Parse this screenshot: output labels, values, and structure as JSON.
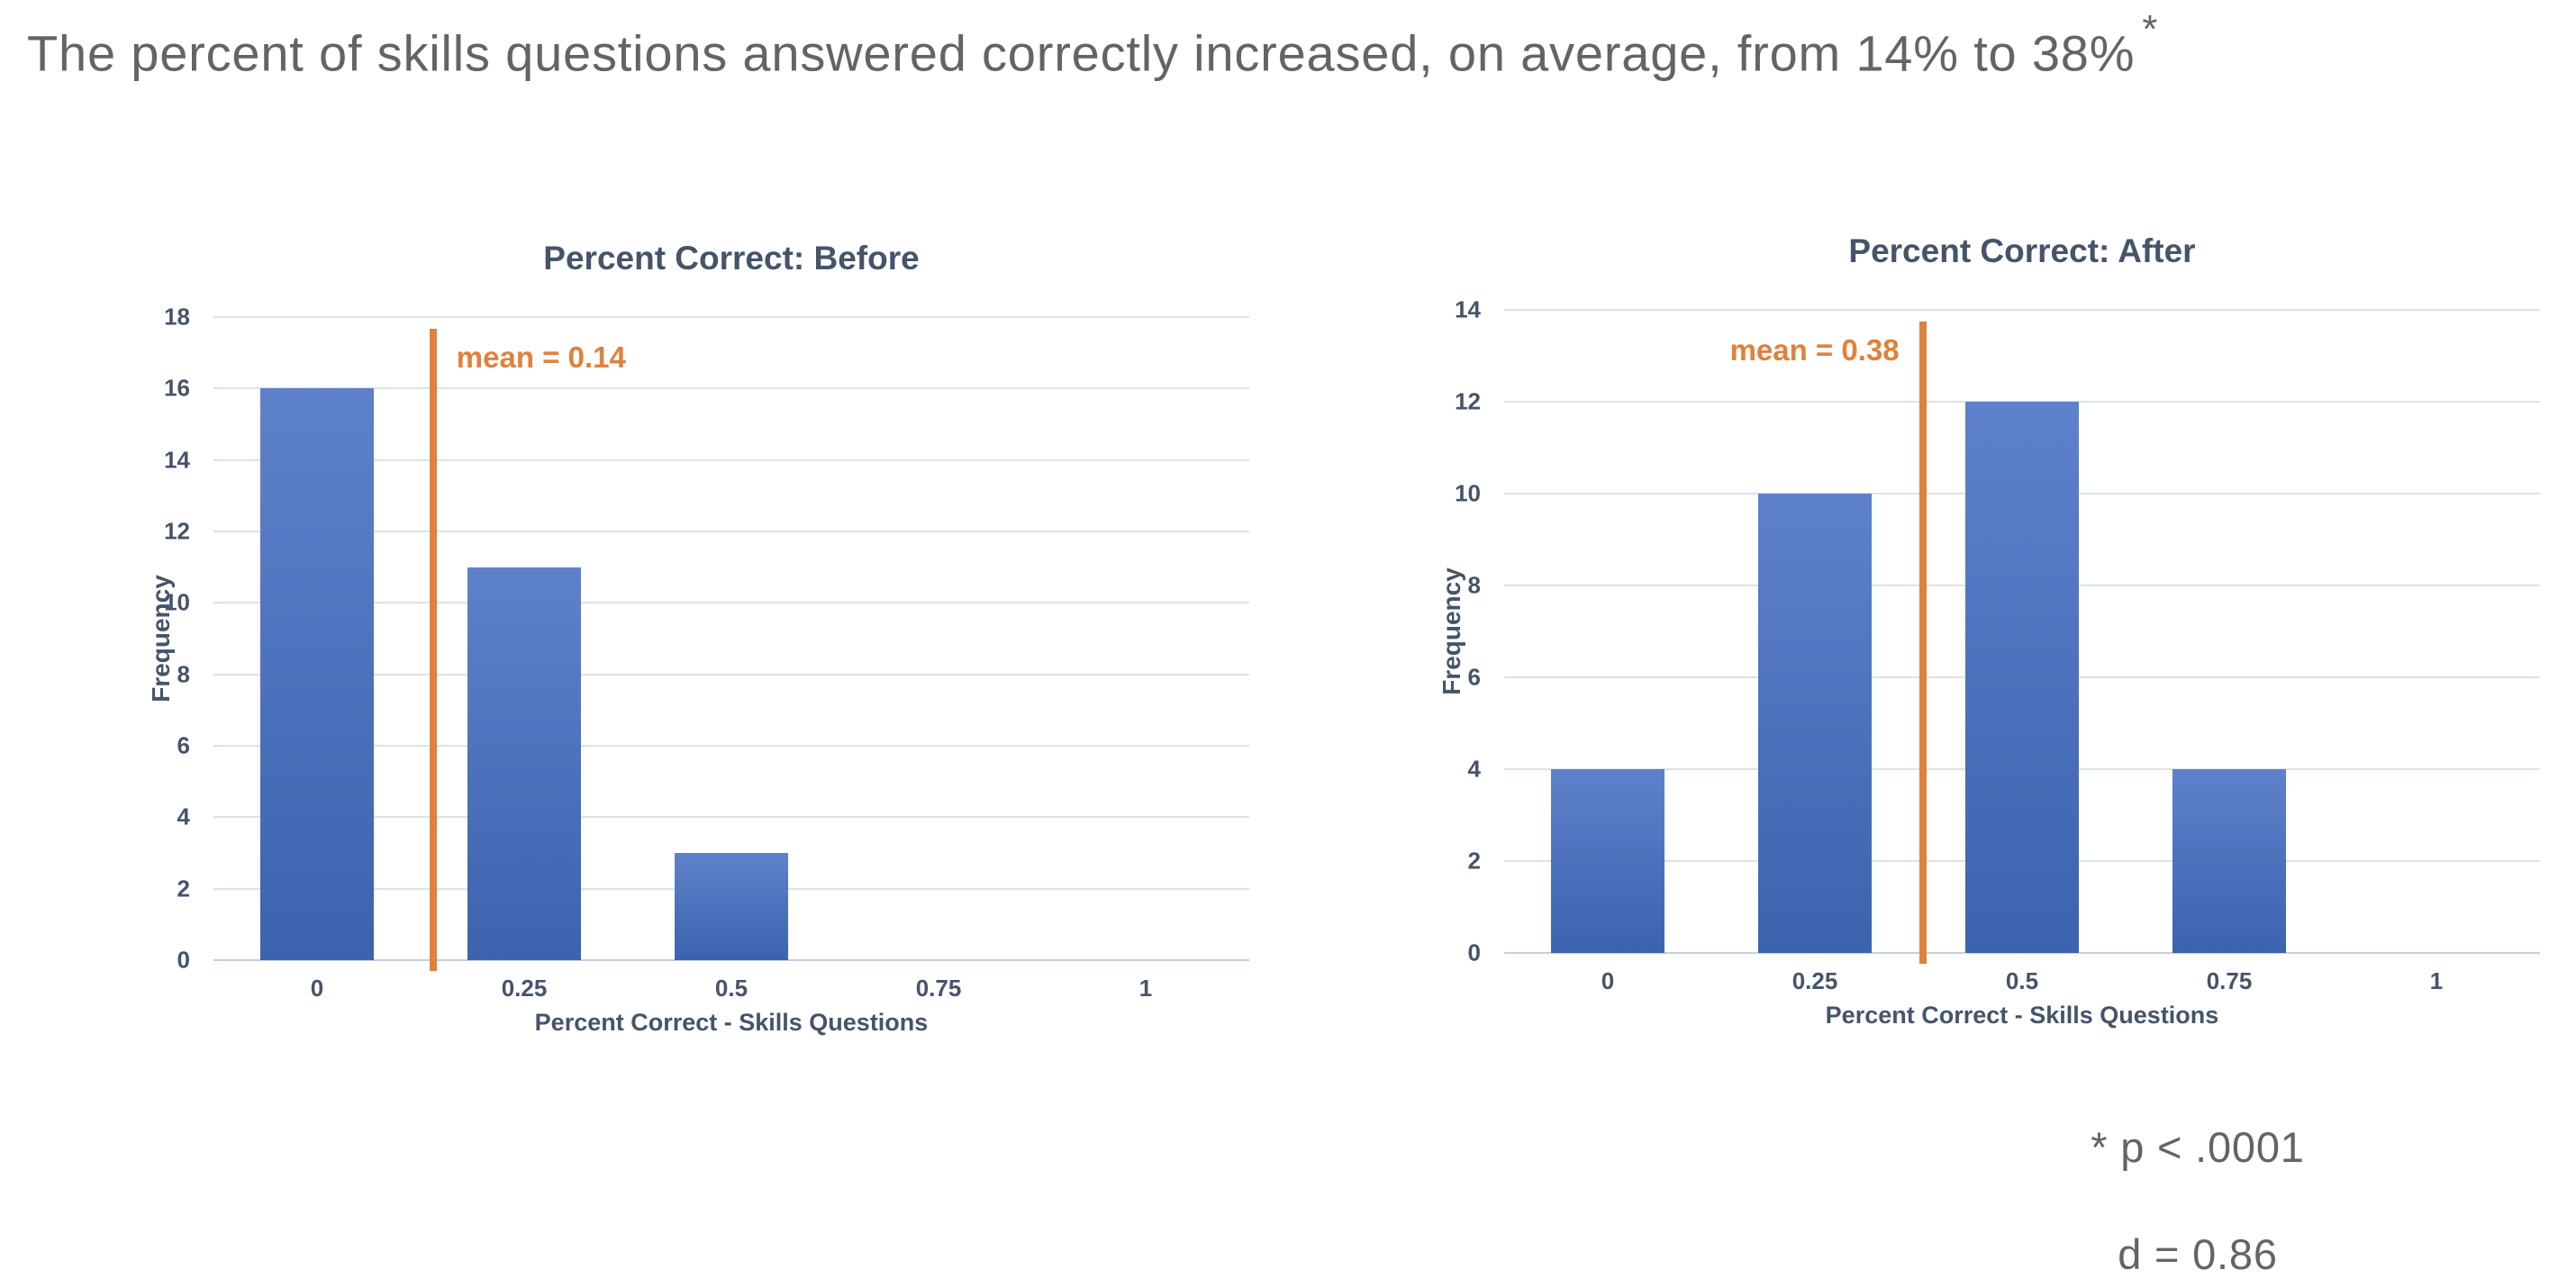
{
  "page": {
    "title": "The percent of skills questions answered correctly increased, on average, from 14% to 38%",
    "title_superscript": "*",
    "footnotes": [
      "* p < .0001",
      "d = 0.86"
    ]
  },
  "colors": {
    "headline_text": "#646464",
    "axis_text": "#44546A",
    "grid": "#DDE1E8",
    "axis_line": "#C9CED8",
    "bar_top": "#5E81CB",
    "bar_bottom": "#3C63AE",
    "mean_accent": "#E0813C"
  },
  "chart_data": [
    {
      "type": "bar",
      "title": "Percent Correct: Before",
      "xlabel": "Percent Correct - Skills Questions",
      "ylabel": "Frequency",
      "categories": [
        "0",
        "0.25",
        "0.5",
        "0.75",
        "1"
      ],
      "values": [
        16,
        11,
        3,
        0,
        0
      ],
      "ylim": [
        0,
        18
      ],
      "ytick_step": 2,
      "grid": true,
      "legend": "none",
      "mean": {
        "value": 0.14,
        "label": "mean = 0.14",
        "label_side": "right"
      }
    },
    {
      "type": "bar",
      "title": "Percent Correct: After",
      "xlabel": "Percent Correct - Skills Questions",
      "ylabel": "Frequency",
      "categories": [
        "0",
        "0.25",
        "0.5",
        "0.75",
        "1"
      ],
      "values": [
        4,
        10,
        12,
        4,
        0
      ],
      "ylim": [
        0,
        14
      ],
      "ytick_step": 2,
      "grid": true,
      "legend": "none",
      "mean": {
        "value": 0.38,
        "label": "mean = 0.38",
        "label_side": "left"
      }
    }
  ]
}
